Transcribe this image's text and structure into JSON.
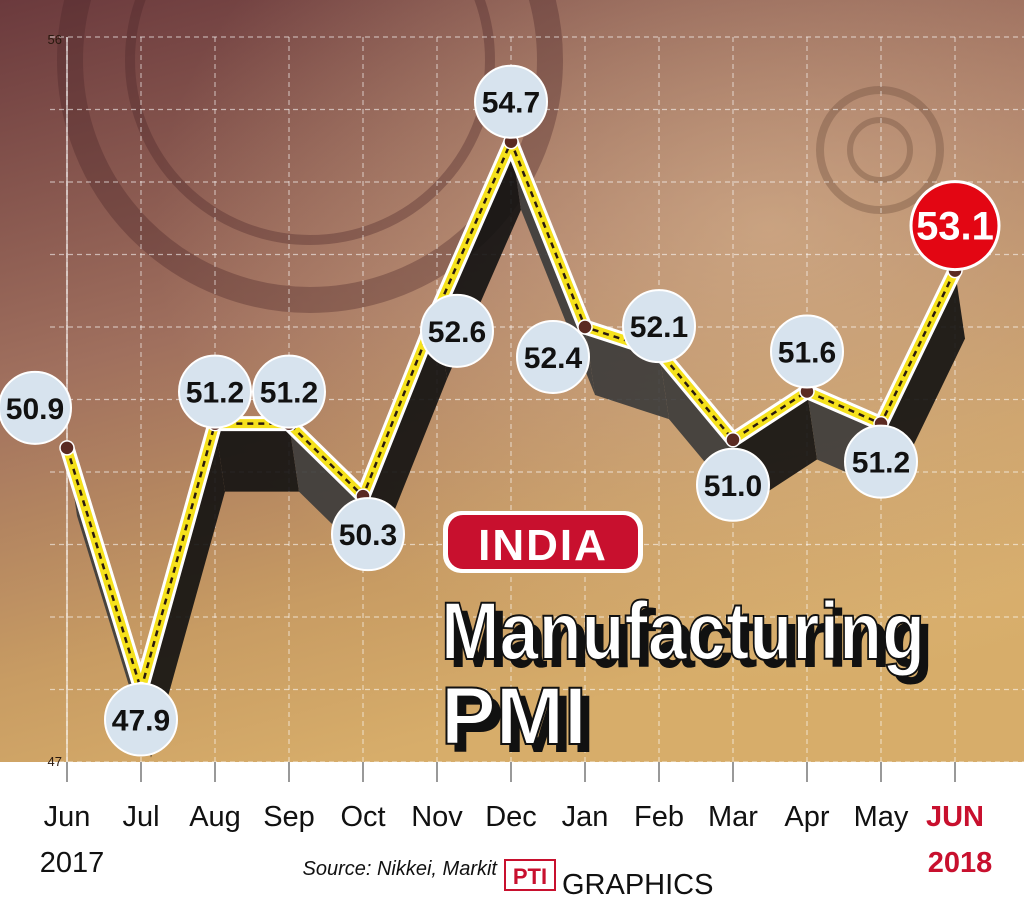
{
  "chart_data": {
    "type": "line",
    "title_tag": "INDIA",
    "title_line1": "Manufacturing",
    "title_line2": "PMI",
    "categories": [
      "Jun",
      "Jul",
      "Aug",
      "Sep",
      "Oct",
      "Nov",
      "Dec",
      "Jan",
      "Feb",
      "Mar",
      "Apr",
      "May",
      "JUN"
    ],
    "year_start": "2017",
    "year_end": "2018",
    "values": [
      50.9,
      47.9,
      51.2,
      51.2,
      50.3,
      52.6,
      54.7,
      52.4,
      52.1,
      51.0,
      51.6,
      51.2,
      53.1
    ],
    "value_labels": [
      "50.9",
      "47.9",
      "51.2",
      "51.2",
      "50.3",
      "52.6",
      "54.7",
      "52.4",
      "52.1",
      "51.0",
      "51.6",
      "51.2",
      "53.1"
    ],
    "ylim": [
      47,
      56
    ],
    "y_ticks": [
      "56",
      "47"
    ],
    "grid": true,
    "highlight_index": 12,
    "source": "Source: Nikkei, Markit",
    "credit_logo": "PTI",
    "credit": "GRAPHICS"
  },
  "colors": {
    "line": "#f5e11c",
    "line_outline": "#ffffff",
    "dash": "#2a1a10",
    "bubble": "#d7e3ee",
    "highlight": "#e30613",
    "tag": "#c8102e",
    "bg_top": "#6e3f3f",
    "bg_bottom": "#d6aa64",
    "month_highlight": "#c8102e"
  }
}
